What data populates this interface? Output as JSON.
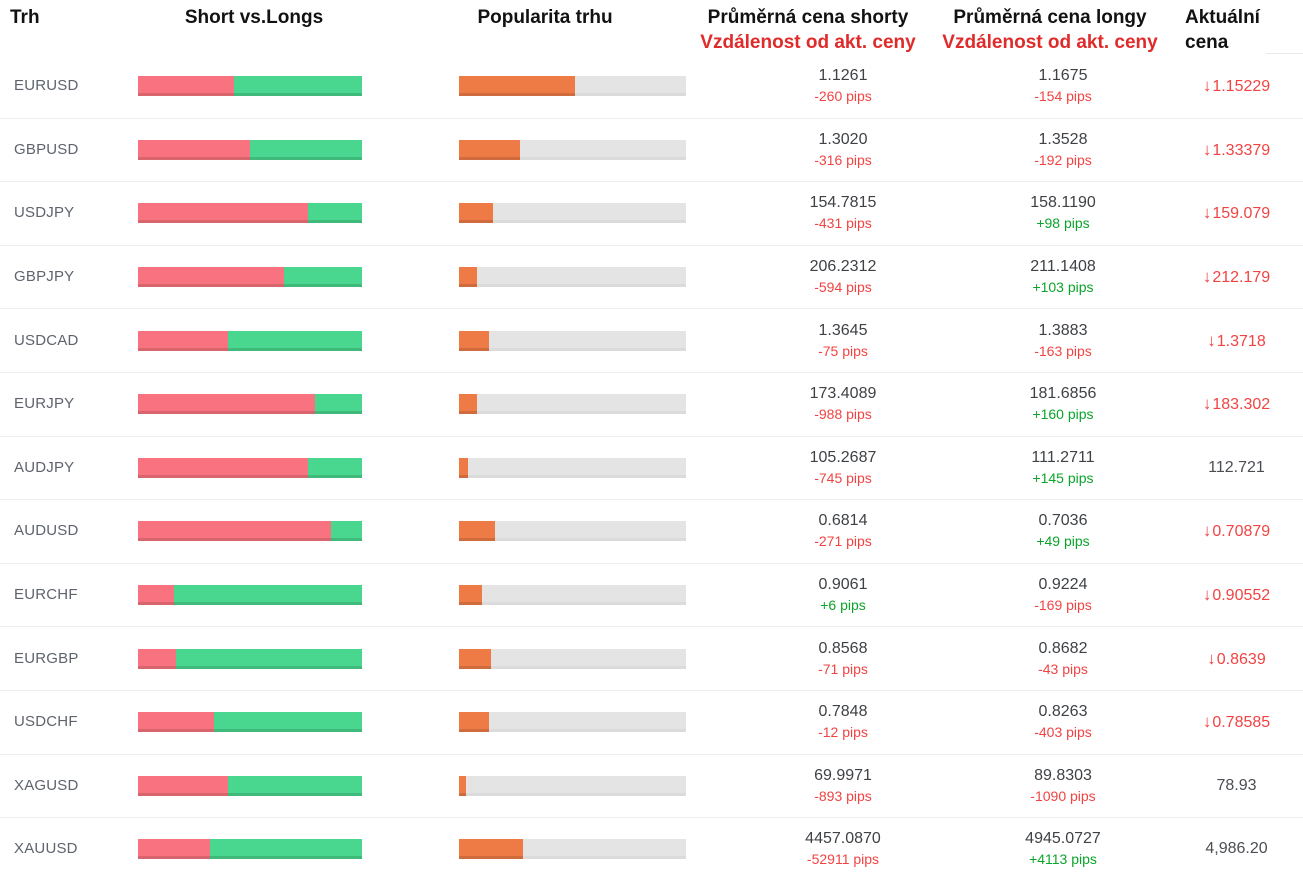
{
  "header": {
    "market": "Trh",
    "short_vs_longs": "Short vs.Longs",
    "popularity": "Popularita trhu",
    "avg_short_title": "Průměrná cena shorty",
    "avg_short_sub": "Vzdálenost od akt. ceny",
    "avg_long_title": "Průměrná cena longy",
    "avg_long_sub": "Vzdálenost od akt. ceny",
    "current_price": "Aktuální cena"
  },
  "colors": {
    "short-red": "#F8737F",
    "long-green": "#49D68E",
    "popularity-orange": "#EE7B46",
    "track-gray": "#E4E4E4",
    "sep-gray": "#EAEEF1",
    "header-red": "#E02B2B",
    "negative-red": "#F24343",
    "positive-green": "#0BA42B",
    "neutral-dark": "#4B4E53"
  },
  "rows": [
    {
      "pair": "EURUSD",
      "short_pct": 43,
      "popularity_pct": 51,
      "avg_short_price": "1.1261",
      "short_distance": "-260 pips",
      "avg_long_price": "1.1675",
      "long_distance": "-154 pips",
      "current_price": "1.15229",
      "trend": "down"
    },
    {
      "pair": "GBPUSD",
      "short_pct": 50,
      "popularity_pct": 27,
      "avg_short_price": "1.3020",
      "short_distance": "-316 pips",
      "avg_long_price": "1.3528",
      "long_distance": "-192 pips",
      "current_price": "1.33379",
      "trend": "down"
    },
    {
      "pair": "USDJPY",
      "short_pct": 76,
      "popularity_pct": 15,
      "avg_short_price": "154.7815",
      "short_distance": "-431 pips",
      "avg_long_price": "158.1190",
      "long_distance": "+98 pips",
      "current_price": "159.079",
      "trend": "down"
    },
    {
      "pair": "GBPJPY",
      "short_pct": 65,
      "popularity_pct": 8,
      "avg_short_price": "206.2312",
      "short_distance": "-594 pips",
      "avg_long_price": "211.1408",
      "long_distance": "+103 pips",
      "current_price": "212.179",
      "trend": "down"
    },
    {
      "pair": "USDCAD",
      "short_pct": 40,
      "popularity_pct": 13,
      "avg_short_price": "1.3645",
      "short_distance": "-75 pips",
      "avg_long_price": "1.3883",
      "long_distance": "-163 pips",
      "current_price": "1.3718",
      "trend": "down"
    },
    {
      "pair": "EURJPY",
      "short_pct": 79,
      "popularity_pct": 8,
      "avg_short_price": "173.4089",
      "short_distance": "-988 pips",
      "avg_long_price": "181.6856",
      "long_distance": "+160 pips",
      "current_price": "183.302",
      "trend": "down"
    },
    {
      "pair": "AUDJPY",
      "short_pct": 76,
      "popularity_pct": 4,
      "avg_short_price": "105.2687",
      "short_distance": "-745 pips",
      "avg_long_price": "111.2711",
      "long_distance": "+145 pips",
      "current_price": "112.721",
      "trend": "none"
    },
    {
      "pair": "AUDUSD",
      "short_pct": 86,
      "popularity_pct": 16,
      "avg_short_price": "0.6814",
      "short_distance": "-271 pips",
      "avg_long_price": "0.7036",
      "long_distance": "+49 pips",
      "current_price": "0.70879",
      "trend": "down"
    },
    {
      "pair": "EURCHF",
      "short_pct": 16,
      "popularity_pct": 10,
      "avg_short_price": "0.9061",
      "short_distance": "+6 pips",
      "avg_long_price": "0.9224",
      "long_distance": "-169 pips",
      "current_price": "0.90552",
      "trend": "down"
    },
    {
      "pair": "EURGBP",
      "short_pct": 17,
      "popularity_pct": 14,
      "avg_short_price": "0.8568",
      "short_distance": "-71 pips",
      "avg_long_price": "0.8682",
      "long_distance": "-43 pips",
      "current_price": "0.8639",
      "trend": "down"
    },
    {
      "pair": "USDCHF",
      "short_pct": 34,
      "popularity_pct": 13,
      "avg_short_price": "0.7848",
      "short_distance": "-12 pips",
      "avg_long_price": "0.8263",
      "long_distance": "-403 pips",
      "current_price": "0.78585",
      "trend": "down"
    },
    {
      "pair": "XAGUSD",
      "short_pct": 40,
      "popularity_pct": 3,
      "avg_short_price": "69.9971",
      "short_distance": "-893 pips",
      "avg_long_price": "89.8303",
      "long_distance": "-1090 pips",
      "current_price": "78.93",
      "trend": "none"
    },
    {
      "pair": "XAUUSD",
      "short_pct": 32,
      "popularity_pct": 28,
      "avg_short_price": "4457.0870",
      "short_distance": "-52911 pips",
      "avg_long_price": "4945.0727",
      "long_distance": "+4113 pips",
      "current_price": "4,986.20",
      "trend": "none"
    }
  ]
}
